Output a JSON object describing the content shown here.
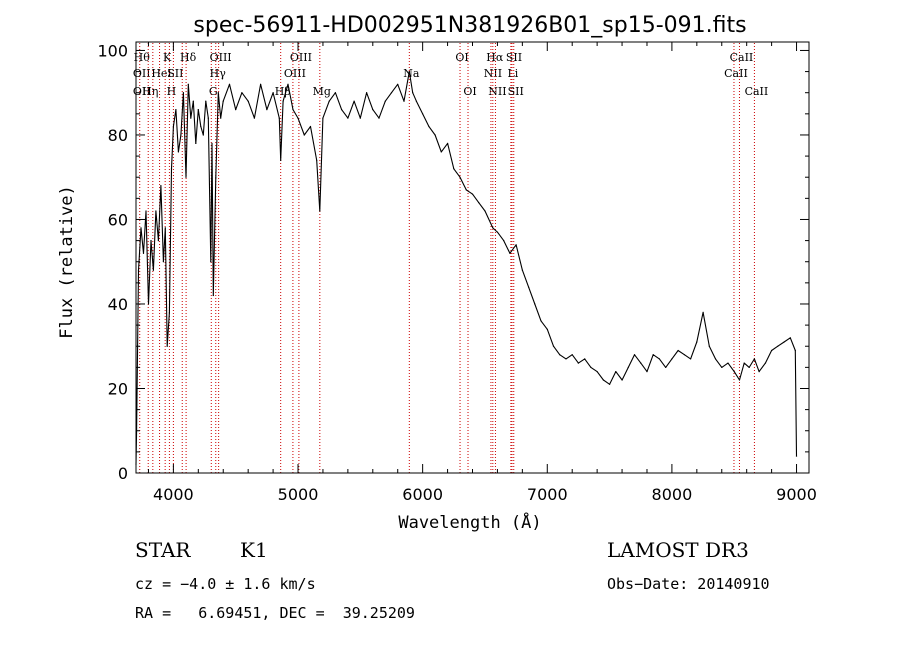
{
  "chart_data": {
    "type": "line",
    "title": "spec-56911-HD002951N381926B01_sp15-091.fits",
    "xlabel": "Wavelength (Å)",
    "ylabel": "Flux (relative)",
    "xlim": [
      3700,
      9100
    ],
    "ylim": [
      0,
      102
    ],
    "xticks": [
      4000,
      5000,
      6000,
      7000,
      8000,
      9000
    ],
    "yticks": [
      0,
      20,
      40,
      60,
      80,
      100
    ],
    "grid": false,
    "series": [
      {
        "x": [
          3700,
          3705,
          3720,
          3740,
          3760,
          3780,
          3800,
          3820,
          3840,
          3860,
          3880,
          3900,
          3920,
          3935,
          3950,
          3968,
          3985,
          4000,
          4020,
          4040,
          4060,
          4080,
          4101,
          4120,
          4140,
          4160,
          4180,
          4200,
          4220,
          4240,
          4260,
          4280,
          4300,
          4310,
          4320,
          4340,
          4360,
          4380,
          4400,
          4450,
          4500,
          4550,
          4600,
          4650,
          4700,
          4750,
          4800,
          4850,
          4861,
          4880,
          4920,
          4960,
          5000,
          5050,
          5100,
          5150,
          5175,
          5200,
          5250,
          5300,
          5350,
          5400,
          5450,
          5500,
          5550,
          5600,
          5650,
          5700,
          5750,
          5800,
          5850,
          5893,
          5920,
          5950,
          6000,
          6050,
          6100,
          6150,
          6200,
          6250,
          6300,
          6350,
          6400,
          6450,
          6500,
          6563,
          6600,
          6650,
          6700,
          6750,
          6800,
          6850,
          6900,
          6950,
          7000,
          7050,
          7100,
          7150,
          7200,
          7250,
          7300,
          7350,
          7400,
          7450,
          7500,
          7550,
          7600,
          7650,
          7700,
          7750,
          7800,
          7850,
          7900,
          7950,
          8000,
          8050,
          8100,
          8150,
          8200,
          8250,
          8300,
          8350,
          8400,
          8450,
          8500,
          8542,
          8580,
          8620,
          8662,
          8700,
          8750,
          8800,
          8850,
          8900,
          8950,
          8990,
          9000
        ],
        "y": [
          2,
          10,
          48,
          58,
          52,
          62,
          40,
          55,
          48,
          62,
          55,
          68,
          50,
          58,
          30,
          38,
          72,
          82,
          86,
          76,
          80,
          90,
          70,
          92,
          84,
          88,
          78,
          86,
          82,
          80,
          88,
          84,
          50,
          78,
          42,
          70,
          90,
          84,
          88,
          92,
          86,
          90,
          88,
          84,
          92,
          86,
          90,
          84,
          74,
          88,
          92,
          86,
          84,
          80,
          82,
          74,
          62,
          84,
          88,
          90,
          86,
          84,
          88,
          84,
          90,
          86,
          84,
          88,
          90,
          92,
          88,
          95,
          90,
          88,
          85,
          82,
          80,
          76,
          78,
          72,
          70,
          67,
          66,
          64,
          62,
          58,
          57,
          55,
          52,
          54,
          48,
          44,
          40,
          36,
          34,
          30,
          28,
          27,
          28,
          26,
          27,
          25,
          24,
          22,
          21,
          24,
          22,
          25,
          28,
          26,
          24,
          28,
          27,
          25,
          27,
          29,
          28,
          27,
          31,
          38,
          30,
          27,
          25,
          26,
          24,
          22,
          26,
          25,
          27,
          24,
          26,
          29,
          30,
          31,
          32,
          29,
          4
        ]
      }
    ],
    "lines": [
      {
        "x": 3730,
        "labels": [
          {
            "text": "Hθ",
            "row": 1
          },
          {
            "text": "OII",
            "row": 2
          },
          {
            "text": "OII",
            "row": 3
          }
        ]
      },
      {
        "x": 3798,
        "labels": [
          {
            "text": "Hη",
            "row": 3
          }
        ]
      },
      {
        "x": 3835,
        "labels": []
      },
      {
        "x": 3889,
        "labels": [
          {
            "text": "HeI",
            "row": 2
          }
        ]
      },
      {
        "x": 3934,
        "labels": [
          {
            "text": "K",
            "row": 1
          }
        ]
      },
      {
        "x": 3968,
        "labels": [
          {
            "text": "H",
            "row": 3
          }
        ]
      },
      {
        "x": 4000,
        "labels": [
          {
            "text": "SII",
            "row": 2
          }
        ]
      },
      {
        "x": 4071,
        "labels": []
      },
      {
        "x": 4102,
        "labels": [
          {
            "text": "Hδ",
            "row": 1
          }
        ]
      },
      {
        "x": 4304,
        "labels": [
          {
            "text": "G",
            "row": 3
          }
        ]
      },
      {
        "x": 4340,
        "labels": [
          {
            "text": "Hγ",
            "row": 2
          }
        ]
      },
      {
        "x": 4363,
        "labels": [
          {
            "text": "OIII",
            "row": 1
          }
        ]
      },
      {
        "x": 4861,
        "labels": [
          {
            "text": "Hβ",
            "row": 3
          }
        ]
      },
      {
        "x": 4959,
        "labels": [
          {
            "text": "OIII",
            "row": 2
          }
        ]
      },
      {
        "x": 5007,
        "labels": [
          {
            "text": "OIII",
            "row": 1
          }
        ]
      },
      {
        "x": 5175,
        "labels": [
          {
            "text": "Mg",
            "row": 3
          }
        ]
      },
      {
        "x": 5893,
        "labels": [
          {
            "text": "Na",
            "row": 2
          }
        ]
      },
      {
        "x": 6300,
        "labels": [
          {
            "text": "OI",
            "row": 1
          }
        ]
      },
      {
        "x": 6364,
        "labels": [
          {
            "text": "OI",
            "row": 3
          }
        ]
      },
      {
        "x": 6548,
        "labels": [
          {
            "text": "NII",
            "row": 2
          }
        ]
      },
      {
        "x": 6563,
        "labels": [
          {
            "text": "Hα",
            "row": 1
          }
        ]
      },
      {
        "x": 6584,
        "labels": [
          {
            "text": "NII",
            "row": 3
          }
        ]
      },
      {
        "x": 6708,
        "labels": [
          {
            "text": "Li",
            "row": 2
          }
        ]
      },
      {
        "x": 6717,
        "labels": [
          {
            "text": "SII",
            "row": 1
          }
        ]
      },
      {
        "x": 6731,
        "labels": [
          {
            "text": "SII",
            "row": 3
          }
        ]
      },
      {
        "x": 8498,
        "labels": [
          {
            "text": "CaII",
            "row": 2
          }
        ]
      },
      {
        "x": 8542,
        "labels": [
          {
            "text": "CaII",
            "row": 1
          }
        ]
      },
      {
        "x": 8662,
        "labels": [
          {
            "text": "CaII",
            "row": 3
          }
        ]
      }
    ]
  },
  "info": {
    "object_type": "STAR",
    "subclass": "K1",
    "survey": "LAMOST DR3",
    "cz": "cz = −4.0 ± 1.6 km/s",
    "obs_date": "Obs−Date: 20140910",
    "coords": "RA =   6.69451, DEC =  39.25209"
  },
  "colors": {
    "line": "#000000",
    "marker_lines": "#cc0000",
    "background": "#ffffff"
  }
}
